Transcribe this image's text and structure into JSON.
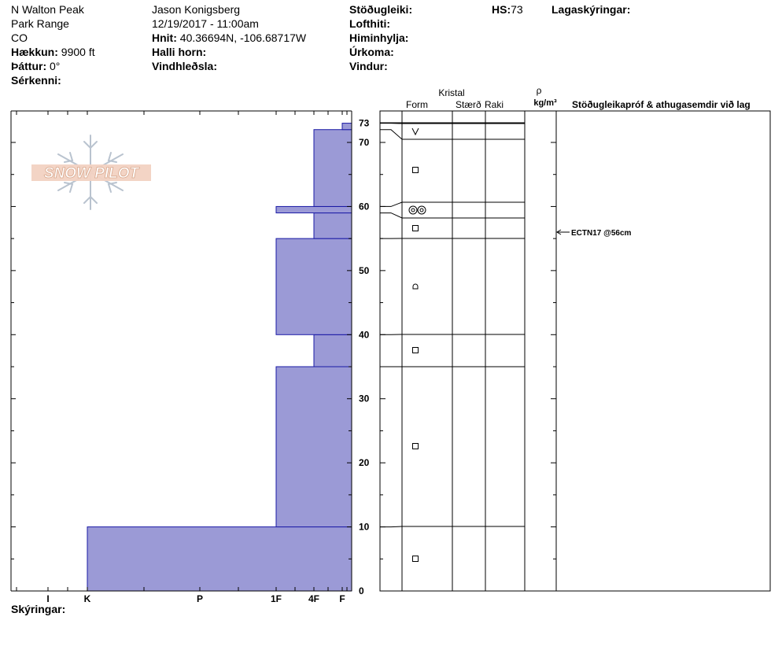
{
  "header": {
    "location": "N Walton Peak",
    "range": "Park Range",
    "state": "CO",
    "elevation_label": "Hækkun:",
    "elevation_value": "9900 ft",
    "aspect_label": "Þáttur:",
    "aspect_value": "0°",
    "features_label": "Sérkenni:",
    "observer": "Jason Konigsberg",
    "datetime": "12/19/2017 - 11:00am",
    "coords_label": "Hnit:",
    "coords_value": "40.36694N, -106.68717W",
    "slope_label": "Halli horn:",
    "wind_loading_label": "Vindhleðsla:",
    "stability_label": "Stöðugleiki:",
    "air_temp_label": "Lofthiti:",
    "sky_label": "Himinhylja:",
    "precip_label": "Úrkoma:",
    "wind_label": "Vindur:",
    "hs_label": "HS:",
    "hs_value": "73",
    "layer_notes_label": "Lagaskýringar:"
  },
  "logo_text": "SNOW PILOT",
  "footer": {
    "comments_label": "Skýringar:"
  },
  "columns": {
    "crystal": "Kristal",
    "form": "Form",
    "size": "Stærð",
    "moisture": "Raki",
    "rho": "ρ",
    "density_unit": "kg/m³",
    "tests": "Stöðugleikapróf & athugasemdir við lag"
  },
  "test_note": "ECTN17 @56cm",
  "colors": {
    "hardness_fill": "#9b9ad6",
    "hardness_edge": "#1a1aa6"
  },
  "chart_data": {
    "type": "bar",
    "title": "",
    "ylabel": "",
    "ylim": [
      0,
      73
    ],
    "y_ticks": [
      0,
      10,
      20,
      30,
      40,
      50,
      60,
      70,
      73
    ],
    "hardness_scale": [
      "I",
      "K",
      "P",
      "1F",
      "4F",
      "F"
    ],
    "layers": [
      {
        "bottom": 0,
        "top": 10,
        "hardness": "K",
        "form": "square"
      },
      {
        "bottom": 10,
        "top": 35,
        "hardness": "1F",
        "form": "square"
      },
      {
        "bottom": 35,
        "top": 40,
        "hardness": "4F",
        "form": "square"
      },
      {
        "bottom": 40,
        "top": 55,
        "hardness": "1F",
        "form": "rounded-faceted"
      },
      {
        "bottom": 55,
        "top": 59,
        "hardness": "4F",
        "form": "square"
      },
      {
        "bottom": 59,
        "top": 60,
        "hardness": "1F",
        "form": "double-circle"
      },
      {
        "bottom": 60,
        "top": 72,
        "hardness": "4F",
        "form": "square"
      },
      {
        "bottom": 72,
        "top": 73,
        "hardness": "F",
        "form": "surface-hoar"
      }
    ],
    "grid": false
  }
}
